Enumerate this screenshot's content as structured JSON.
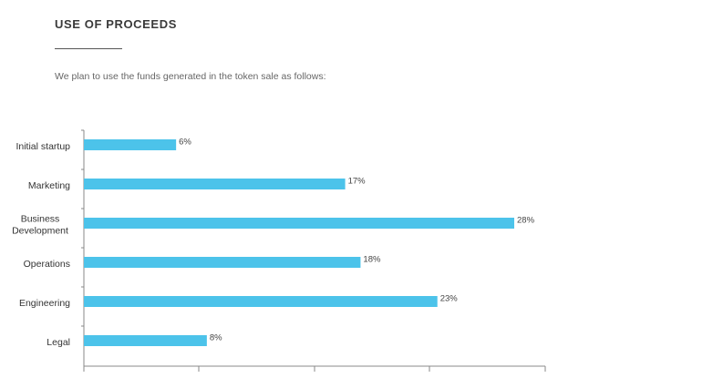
{
  "header": {
    "title": "USE OF PROCEEDS",
    "intro": "We plan to use the funds generated in the token sale as follows:"
  },
  "chart_data": {
    "type": "bar",
    "orientation": "horizontal",
    "categories": [
      "Initial startup",
      "Marketing",
      "Business Development",
      "Operations",
      "Engineering",
      "Legal"
    ],
    "category_lines": [
      [
        "Initial startup"
      ],
      [
        "Marketing"
      ],
      [
        "Business",
        "Development"
      ],
      [
        "Operations"
      ],
      [
        "Engineering"
      ],
      [
        "Legal"
      ]
    ],
    "values": [
      6,
      17,
      28,
      18,
      23,
      8
    ],
    "value_labels": [
      "6%",
      "17%",
      "28%",
      "18%",
      "23%",
      "8%"
    ],
    "xlim": [
      0,
      28
    ],
    "grid": false,
    "color": "#4cc3ea"
  }
}
